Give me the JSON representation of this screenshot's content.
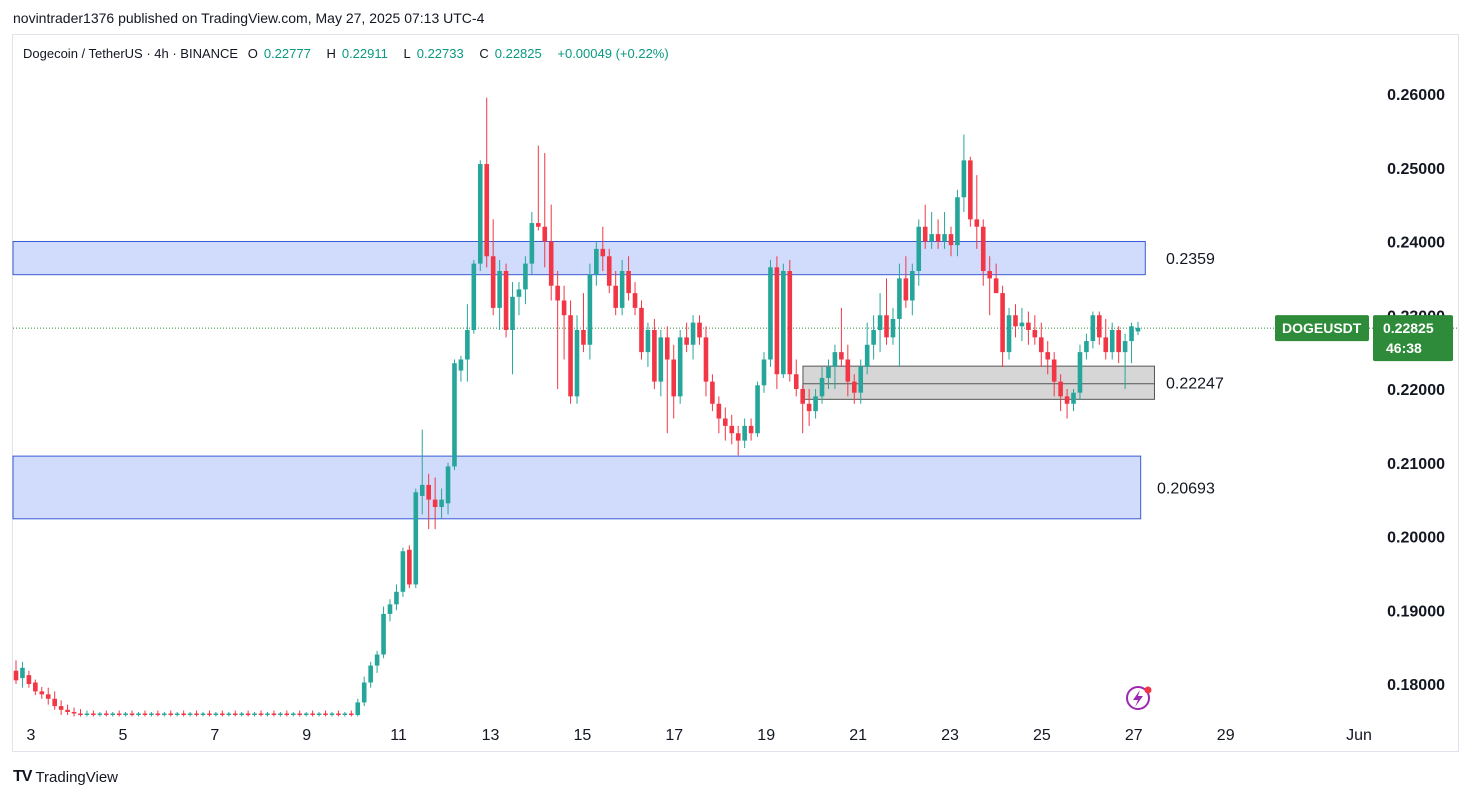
{
  "header": {
    "publisher": "novintrader1376",
    "published_on": "published on TradingView.com, May 27, 2025 07:13 UTC-4"
  },
  "legend": {
    "symbol": "Dogecoin / TetherUS · 4h · BINANCE",
    "o_label": "O",
    "o_value": "0.22777",
    "h_label": "H",
    "h_value": "0.22911",
    "l_label": "L",
    "l_value": "0.22733",
    "c_label": "C",
    "c_value": "0.22825",
    "change": "+0.00049 (+0.22%)"
  },
  "price_tag": {
    "ticker": "DOGEUSDT",
    "price": "0.22825",
    "countdown": "46:38"
  },
  "footer": {
    "brand_mark": "TV",
    "brand": "TradingView"
  },
  "colors": {
    "up": "#089981",
    "down": "#f23645",
    "up_candle": "#26a69a",
    "zone_blue": "#d1dcfc",
    "zone_blue_border": "#3b5bd6",
    "zone_grey": "#d6d6d6",
    "tag": "#2e8b3a"
  },
  "chart_data": {
    "type": "candlestick",
    "title": "Dogecoin / TetherUS · 4h · BINANCE",
    "xlabel": "",
    "ylabel": "",
    "x_ticks": [
      "3",
      "5",
      "7",
      "9",
      "11",
      "13",
      "15",
      "17",
      "19",
      "21",
      "23",
      "25",
      "27",
      "29",
      "Jun"
    ],
    "y_ticks": [
      "0.26000",
      "0.25000",
      "0.24000",
      "0.23000",
      "0.22000",
      "0.21000",
      "0.20000",
      "0.19000",
      "0.18000"
    ],
    "ylim": [
      0.1755,
      0.2655
    ],
    "zones": [
      {
        "name": "resistance",
        "low": 0.2355,
        "high": 0.24,
        "label": "0.2359",
        "x_start_day": 2.0,
        "x_end_day": 27.25
      },
      {
        "name": "support-mid",
        "low": 0.2186,
        "high": 0.2231,
        "label": "0.22247",
        "x_start_day": 19.8,
        "x_end_day": 27.45
      },
      {
        "name": "support-low",
        "low": 0.2024,
        "high": 0.2109,
        "label": "0.20693",
        "x_start_day": 2.0,
        "x_end_day": 27.15
      }
    ],
    "last_price": 0.22825,
    "candles": [
      {
        "o": 0.1818,
        "h": 0.1832,
        "l": 0.18,
        "c": 0.1805
      },
      {
        "o": 0.1808,
        "h": 0.183,
        "l": 0.1795,
        "c": 0.1822
      },
      {
        "o": 0.1812,
        "h": 0.1818,
        "l": 0.1795,
        "c": 0.18
      },
      {
        "o": 0.1802,
        "h": 0.1806,
        "l": 0.1785,
        "c": 0.179
      },
      {
        "o": 0.179,
        "h": 0.1796,
        "l": 0.178,
        "c": 0.1786
      },
      {
        "o": 0.1786,
        "h": 0.1795,
        "l": 0.1772,
        "c": 0.178
      },
      {
        "o": 0.178,
        "h": 0.179,
        "l": 0.1765,
        "c": 0.177
      },
      {
        "o": 0.177,
        "h": 0.1778,
        "l": 0.1758,
        "c": 0.1765
      },
      {
        "o": 0.1765,
        "h": 0.1772,
        "l": 0.1758,
        "c": 0.1762
      },
      {
        "o": 0.1762,
        "h": 0.1768,
        "l": 0.1756,
        "c": 0.176
      },
      {
        "o": 0.176,
        "h": 0.1766,
        "l": 0.1756,
        "c": 0.1758
      },
      {
        "o": 0.1758,
        "h": 0.1764,
        "l": 0.1756,
        "c": 0.176
      },
      {
        "o": 0.176,
        "h": 0.1764,
        "l": 0.1756,
        "c": 0.1758
      },
      {
        "o": 0.1758,
        "h": 0.1762,
        "l": 0.1756,
        "c": 0.176
      },
      {
        "o": 0.176,
        "h": 0.1764,
        "l": 0.1756,
        "c": 0.1758
      },
      {
        "o": 0.1758,
        "h": 0.1762,
        "l": 0.1756,
        "c": 0.176
      },
      {
        "o": 0.176,
        "h": 0.1764,
        "l": 0.1756,
        "c": 0.1758
      },
      {
        "o": 0.1758,
        "h": 0.1762,
        "l": 0.1756,
        "c": 0.176
      },
      {
        "o": 0.176,
        "h": 0.1764,
        "l": 0.1756,
        "c": 0.1758
      },
      {
        "o": 0.1758,
        "h": 0.1762,
        "l": 0.1756,
        "c": 0.176
      },
      {
        "o": 0.176,
        "h": 0.1764,
        "l": 0.1756,
        "c": 0.1758
      },
      {
        "o": 0.1758,
        "h": 0.1762,
        "l": 0.1756,
        "c": 0.176
      },
      {
        "o": 0.176,
        "h": 0.1764,
        "l": 0.1756,
        "c": 0.1758
      },
      {
        "o": 0.1758,
        "h": 0.1762,
        "l": 0.1756,
        "c": 0.176
      },
      {
        "o": 0.176,
        "h": 0.1764,
        "l": 0.1756,
        "c": 0.1758
      },
      {
        "o": 0.1758,
        "h": 0.1762,
        "l": 0.1756,
        "c": 0.176
      },
      {
        "o": 0.176,
        "h": 0.1764,
        "l": 0.1756,
        "c": 0.1758
      },
      {
        "o": 0.1758,
        "h": 0.1762,
        "l": 0.1756,
        "c": 0.176
      },
      {
        "o": 0.176,
        "h": 0.1764,
        "l": 0.1756,
        "c": 0.1758
      },
      {
        "o": 0.1758,
        "h": 0.1762,
        "l": 0.1756,
        "c": 0.176
      },
      {
        "o": 0.176,
        "h": 0.1764,
        "l": 0.1756,
        "c": 0.1758
      },
      {
        "o": 0.1758,
        "h": 0.1762,
        "l": 0.1756,
        "c": 0.176
      },
      {
        "o": 0.176,
        "h": 0.1764,
        "l": 0.1756,
        "c": 0.1758
      },
      {
        "o": 0.1758,
        "h": 0.1762,
        "l": 0.1756,
        "c": 0.176
      },
      {
        "o": 0.176,
        "h": 0.1764,
        "l": 0.1756,
        "c": 0.1758
      },
      {
        "o": 0.1758,
        "h": 0.1762,
        "l": 0.1756,
        "c": 0.176
      },
      {
        "o": 0.176,
        "h": 0.1764,
        "l": 0.1756,
        "c": 0.1758
      },
      {
        "o": 0.1758,
        "h": 0.1762,
        "l": 0.1756,
        "c": 0.176
      },
      {
        "o": 0.176,
        "h": 0.1764,
        "l": 0.1756,
        "c": 0.1758
      },
      {
        "o": 0.1758,
        "h": 0.1762,
        "l": 0.1756,
        "c": 0.176
      },
      {
        "o": 0.176,
        "h": 0.1764,
        "l": 0.1756,
        "c": 0.1758
      },
      {
        "o": 0.1758,
        "h": 0.1762,
        "l": 0.1756,
        "c": 0.176
      },
      {
        "o": 0.176,
        "h": 0.1764,
        "l": 0.1756,
        "c": 0.1758
      },
      {
        "o": 0.1758,
        "h": 0.1762,
        "l": 0.1756,
        "c": 0.176
      },
      {
        "o": 0.176,
        "h": 0.1764,
        "l": 0.1756,
        "c": 0.1758
      },
      {
        "o": 0.1758,
        "h": 0.1762,
        "l": 0.1756,
        "c": 0.176
      },
      {
        "o": 0.176,
        "h": 0.1764,
        "l": 0.1756,
        "c": 0.1758
      },
      {
        "o": 0.1758,
        "h": 0.1762,
        "l": 0.1756,
        "c": 0.176
      },
      {
        "o": 0.176,
        "h": 0.1764,
        "l": 0.1756,
        "c": 0.1758
      },
      {
        "o": 0.1758,
        "h": 0.1762,
        "l": 0.1756,
        "c": 0.176
      },
      {
        "o": 0.176,
        "h": 0.1764,
        "l": 0.1756,
        "c": 0.1758
      },
      {
        "o": 0.1758,
        "h": 0.1762,
        "l": 0.1756,
        "c": 0.176
      },
      {
        "o": 0.176,
        "h": 0.1764,
        "l": 0.1756,
        "c": 0.1758
      },
      {
        "o": 0.1758,
        "h": 0.178,
        "l": 0.1756,
        "c": 0.1775
      },
      {
        "o": 0.1775,
        "h": 0.181,
        "l": 0.177,
        "c": 0.1802
      },
      {
        "o": 0.1802,
        "h": 0.183,
        "l": 0.1795,
        "c": 0.1825
      },
      {
        "o": 0.1825,
        "h": 0.1845,
        "l": 0.1815,
        "c": 0.184
      },
      {
        "o": 0.184,
        "h": 0.1905,
        "l": 0.1835,
        "c": 0.1895
      },
      {
        "o": 0.1895,
        "h": 0.1915,
        "l": 0.1885,
        "c": 0.1908
      },
      {
        "o": 0.1908,
        "h": 0.1935,
        "l": 0.19,
        "c": 0.1925
      },
      {
        "o": 0.1925,
        "h": 0.1985,
        "l": 0.1918,
        "c": 0.198
      },
      {
        "o": 0.1982,
        "h": 0.1988,
        "l": 0.193,
        "c": 0.1935
      },
      {
        "o": 0.1935,
        "h": 0.2065,
        "l": 0.193,
        "c": 0.206
      },
      {
        "o": 0.2055,
        "h": 0.2145,
        "l": 0.203,
        "c": 0.207
      },
      {
        "o": 0.207,
        "h": 0.2085,
        "l": 0.201,
        "c": 0.205
      },
      {
        "o": 0.205,
        "h": 0.208,
        "l": 0.201,
        "c": 0.204
      },
      {
        "o": 0.204,
        "h": 0.2065,
        "l": 0.2025,
        "c": 0.205
      },
      {
        "o": 0.2045,
        "h": 0.21,
        "l": 0.203,
        "c": 0.2095
      },
      {
        "o": 0.2095,
        "h": 0.224,
        "l": 0.209,
        "c": 0.2235
      },
      {
        "o": 0.2225,
        "h": 0.2245,
        "l": 0.221,
        "c": 0.224
      },
      {
        "o": 0.224,
        "h": 0.2315,
        "l": 0.221,
        "c": 0.228
      },
      {
        "o": 0.228,
        "h": 0.2375,
        "l": 0.2275,
        "c": 0.237
      },
      {
        "o": 0.237,
        "h": 0.251,
        "l": 0.236,
        "c": 0.2505
      },
      {
        "o": 0.2505,
        "h": 0.2595,
        "l": 0.2365,
        "c": 0.238
      },
      {
        "o": 0.238,
        "h": 0.243,
        "l": 0.23,
        "c": 0.231
      },
      {
        "o": 0.231,
        "h": 0.2375,
        "l": 0.228,
        "c": 0.236
      },
      {
        "o": 0.236,
        "h": 0.237,
        "l": 0.227,
        "c": 0.228
      },
      {
        "o": 0.228,
        "h": 0.2345,
        "l": 0.222,
        "c": 0.2325
      },
      {
        "o": 0.2325,
        "h": 0.2345,
        "l": 0.23,
        "c": 0.2335
      },
      {
        "o": 0.2335,
        "h": 0.238,
        "l": 0.2315,
        "c": 0.237
      },
      {
        "o": 0.237,
        "h": 0.244,
        "l": 0.2355,
        "c": 0.2425
      },
      {
        "o": 0.2425,
        "h": 0.253,
        "l": 0.2415,
        "c": 0.242
      },
      {
        "o": 0.242,
        "h": 0.252,
        "l": 0.2365,
        "c": 0.24
      },
      {
        "o": 0.24,
        "h": 0.245,
        "l": 0.232,
        "c": 0.234
      },
      {
        "o": 0.234,
        "h": 0.236,
        "l": 0.22,
        "c": 0.232
      },
      {
        "o": 0.232,
        "h": 0.234,
        "l": 0.224,
        "c": 0.23
      },
      {
        "o": 0.23,
        "h": 0.232,
        "l": 0.218,
        "c": 0.219
      },
      {
        "o": 0.219,
        "h": 0.23,
        "l": 0.218,
        "c": 0.228
      },
      {
        "o": 0.228,
        "h": 0.233,
        "l": 0.225,
        "c": 0.226
      },
      {
        "o": 0.226,
        "h": 0.237,
        "l": 0.224,
        "c": 0.2355
      },
      {
        "o": 0.2355,
        "h": 0.24,
        "l": 0.234,
        "c": 0.239
      },
      {
        "o": 0.239,
        "h": 0.242,
        "l": 0.236,
        "c": 0.238
      },
      {
        "o": 0.238,
        "h": 0.239,
        "l": 0.233,
        "c": 0.234
      },
      {
        "o": 0.234,
        "h": 0.236,
        "l": 0.23,
        "c": 0.231
      },
      {
        "o": 0.231,
        "h": 0.2375,
        "l": 0.23,
        "c": 0.236
      },
      {
        "o": 0.236,
        "h": 0.238,
        "l": 0.232,
        "c": 0.233
      },
      {
        "o": 0.233,
        "h": 0.2345,
        "l": 0.23,
        "c": 0.231
      },
      {
        "o": 0.231,
        "h": 0.232,
        "l": 0.224,
        "c": 0.225
      },
      {
        "o": 0.225,
        "h": 0.229,
        "l": 0.223,
        "c": 0.228
      },
      {
        "o": 0.228,
        "h": 0.2295,
        "l": 0.22,
        "c": 0.221
      },
      {
        "o": 0.221,
        "h": 0.228,
        "l": 0.219,
        "c": 0.227
      },
      {
        "o": 0.227,
        "h": 0.2285,
        "l": 0.214,
        "c": 0.224
      },
      {
        "o": 0.224,
        "h": 0.226,
        "l": 0.216,
        "c": 0.219
      },
      {
        "o": 0.219,
        "h": 0.228,
        "l": 0.218,
        "c": 0.227
      },
      {
        "o": 0.227,
        "h": 0.229,
        "l": 0.225,
        "c": 0.226
      },
      {
        "o": 0.226,
        "h": 0.23,
        "l": 0.224,
        "c": 0.229
      },
      {
        "o": 0.229,
        "h": 0.23,
        "l": 0.226,
        "c": 0.227
      },
      {
        "o": 0.227,
        "h": 0.2285,
        "l": 0.219,
        "c": 0.221
      },
      {
        "o": 0.221,
        "h": 0.222,
        "l": 0.217,
        "c": 0.218
      },
      {
        "o": 0.218,
        "h": 0.219,
        "l": 0.214,
        "c": 0.216
      },
      {
        "o": 0.216,
        "h": 0.2175,
        "l": 0.213,
        "c": 0.215
      },
      {
        "o": 0.215,
        "h": 0.2165,
        "l": 0.2125,
        "c": 0.214
      },
      {
        "o": 0.214,
        "h": 0.215,
        "l": 0.211,
        "c": 0.213
      },
      {
        "o": 0.213,
        "h": 0.216,
        "l": 0.212,
        "c": 0.215
      },
      {
        "o": 0.215,
        "h": 0.216,
        "l": 0.213,
        "c": 0.214
      },
      {
        "o": 0.214,
        "h": 0.221,
        "l": 0.2135,
        "c": 0.2205
      },
      {
        "o": 0.2205,
        "h": 0.225,
        "l": 0.2195,
        "c": 0.224
      },
      {
        "o": 0.224,
        "h": 0.2375,
        "l": 0.223,
        "c": 0.2365
      },
      {
        "o": 0.2365,
        "h": 0.238,
        "l": 0.22,
        "c": 0.222
      },
      {
        "o": 0.222,
        "h": 0.237,
        "l": 0.2215,
        "c": 0.236
      },
      {
        "o": 0.236,
        "h": 0.2375,
        "l": 0.221,
        "c": 0.222
      },
      {
        "o": 0.222,
        "h": 0.224,
        "l": 0.219,
        "c": 0.22
      },
      {
        "o": 0.22,
        "h": 0.2205,
        "l": 0.214,
        "c": 0.218
      },
      {
        "o": 0.218,
        "h": 0.22,
        "l": 0.215,
        "c": 0.217
      },
      {
        "o": 0.217,
        "h": 0.22,
        "l": 0.216,
        "c": 0.219
      },
      {
        "o": 0.219,
        "h": 0.223,
        "l": 0.218,
        "c": 0.2215
      },
      {
        "o": 0.2215,
        "h": 0.224,
        "l": 0.22,
        "c": 0.223
      },
      {
        "o": 0.223,
        "h": 0.226,
        "l": 0.22,
        "c": 0.225
      },
      {
        "o": 0.225,
        "h": 0.231,
        "l": 0.223,
        "c": 0.224
      },
      {
        "o": 0.224,
        "h": 0.226,
        "l": 0.219,
        "c": 0.221
      },
      {
        "o": 0.221,
        "h": 0.222,
        "l": 0.218,
        "c": 0.2195
      },
      {
        "o": 0.2195,
        "h": 0.224,
        "l": 0.218,
        "c": 0.223
      },
      {
        "o": 0.223,
        "h": 0.229,
        "l": 0.222,
        "c": 0.226
      },
      {
        "o": 0.226,
        "h": 0.23,
        "l": 0.224,
        "c": 0.228
      },
      {
        "o": 0.228,
        "h": 0.233,
        "l": 0.225,
        "c": 0.23
      },
      {
        "o": 0.23,
        "h": 0.235,
        "l": 0.226,
        "c": 0.227
      },
      {
        "o": 0.227,
        "h": 0.231,
        "l": 0.226,
        "c": 0.2295
      },
      {
        "o": 0.2295,
        "h": 0.237,
        "l": 0.223,
        "c": 0.235
      },
      {
        "o": 0.235,
        "h": 0.238,
        "l": 0.231,
        "c": 0.232
      },
      {
        "o": 0.232,
        "h": 0.237,
        "l": 0.23,
        "c": 0.236
      },
      {
        "o": 0.236,
        "h": 0.243,
        "l": 0.234,
        "c": 0.242
      },
      {
        "o": 0.242,
        "h": 0.245,
        "l": 0.239,
        "c": 0.24
      },
      {
        "o": 0.24,
        "h": 0.244,
        "l": 0.239,
        "c": 0.241
      },
      {
        "o": 0.241,
        "h": 0.243,
        "l": 0.239,
        "c": 0.24
      },
      {
        "o": 0.24,
        "h": 0.244,
        "l": 0.239,
        "c": 0.241
      },
      {
        "o": 0.241,
        "h": 0.242,
        "l": 0.238,
        "c": 0.2395
      },
      {
        "o": 0.2395,
        "h": 0.247,
        "l": 0.238,
        "c": 0.246
      },
      {
        "o": 0.246,
        "h": 0.2545,
        "l": 0.244,
        "c": 0.251
      },
      {
        "o": 0.251,
        "h": 0.2515,
        "l": 0.242,
        "c": 0.243
      },
      {
        "o": 0.243,
        "h": 0.249,
        "l": 0.239,
        "c": 0.242
      },
      {
        "o": 0.242,
        "h": 0.243,
        "l": 0.234,
        "c": 0.236
      },
      {
        "o": 0.236,
        "h": 0.238,
        "l": 0.23,
        "c": 0.235
      },
      {
        "o": 0.235,
        "h": 0.237,
        "l": 0.233,
        "c": 0.233
      },
      {
        "o": 0.233,
        "h": 0.234,
        "l": 0.223,
        "c": 0.225
      },
      {
        "o": 0.225,
        "h": 0.231,
        "l": 0.224,
        "c": 0.23
      },
      {
        "o": 0.23,
        "h": 0.2315,
        "l": 0.227,
        "c": 0.2285
      },
      {
        "o": 0.2285,
        "h": 0.231,
        "l": 0.2265,
        "c": 0.229
      },
      {
        "o": 0.229,
        "h": 0.2305,
        "l": 0.226,
        "c": 0.228
      },
      {
        "o": 0.228,
        "h": 0.23,
        "l": 0.226,
        "c": 0.227
      },
      {
        "o": 0.227,
        "h": 0.229,
        "l": 0.223,
        "c": 0.225
      },
      {
        "o": 0.225,
        "h": 0.2265,
        "l": 0.222,
        "c": 0.224
      },
      {
        "o": 0.224,
        "h": 0.225,
        "l": 0.219,
        "c": 0.221
      },
      {
        "o": 0.221,
        "h": 0.222,
        "l": 0.217,
        "c": 0.219
      },
      {
        "o": 0.219,
        "h": 0.22,
        "l": 0.216,
        "c": 0.218
      },
      {
        "o": 0.218,
        "h": 0.22,
        "l": 0.217,
        "c": 0.2195
      },
      {
        "o": 0.2195,
        "h": 0.226,
        "l": 0.2185,
        "c": 0.225
      },
      {
        "o": 0.225,
        "h": 0.2275,
        "l": 0.224,
        "c": 0.2265
      },
      {
        "o": 0.2265,
        "h": 0.2305,
        "l": 0.2255,
        "c": 0.23
      },
      {
        "o": 0.23,
        "h": 0.2305,
        "l": 0.226,
        "c": 0.227
      },
      {
        "o": 0.227,
        "h": 0.2295,
        "l": 0.224,
        "c": 0.225
      },
      {
        "o": 0.225,
        "h": 0.229,
        "l": 0.224,
        "c": 0.228
      },
      {
        "o": 0.228,
        "h": 0.2285,
        "l": 0.2235,
        "c": 0.225
      },
      {
        "o": 0.225,
        "h": 0.2275,
        "l": 0.22,
        "c": 0.2265
      },
      {
        "o": 0.2265,
        "h": 0.229,
        "l": 0.2235,
        "c": 0.2285
      },
      {
        "o": 0.2278,
        "h": 0.2291,
        "l": 0.2273,
        "c": 0.2283
      }
    ]
  }
}
